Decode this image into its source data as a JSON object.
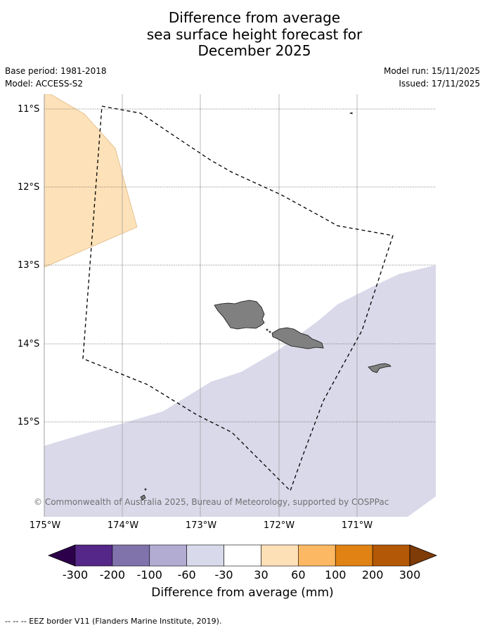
{
  "title": {
    "line1": "Difference from average",
    "line2": "sea surface height forecast for",
    "line3": "December 2025"
  },
  "meta": {
    "base_period": "Base period: 1981-2018",
    "model": "Model: ACCESS-S2",
    "model_run": "Model run: 15/11/2025",
    "issued": "Issued: 17/11/2025"
  },
  "map": {
    "lat_labels": [
      "11°S",
      "12°S",
      "13°S",
      "14°S",
      "15°S"
    ],
    "lon_labels": [
      "175°W",
      "174°W",
      "173°W",
      "172°W",
      "171°W"
    ],
    "copyright": "© Commonwealth of Australia 2025, Bureau of Meteorology, supported by COSPPac",
    "region_colors": {
      "positive_30_60": "#fde1b8",
      "negative_30_60": "#d9d9ea",
      "land": "#808080"
    }
  },
  "colorbar": {
    "ticks": [
      "-300",
      "-200",
      "-100",
      "-60",
      "-30",
      "30",
      "60",
      "100",
      "200",
      "300"
    ],
    "colors": [
      "#2d004b",
      "#542788",
      "#8073ac",
      "#b2abd2",
      "#d8daeb",
      "#ffffff",
      "#fee0b6",
      "#fdb863",
      "#e08214",
      "#b35806",
      "#7f3b08"
    ],
    "label": "Difference from average (mm)"
  },
  "footnote": "--  --  -- EEZ border V11 (Flanders Marine Institute, 2019)."
}
